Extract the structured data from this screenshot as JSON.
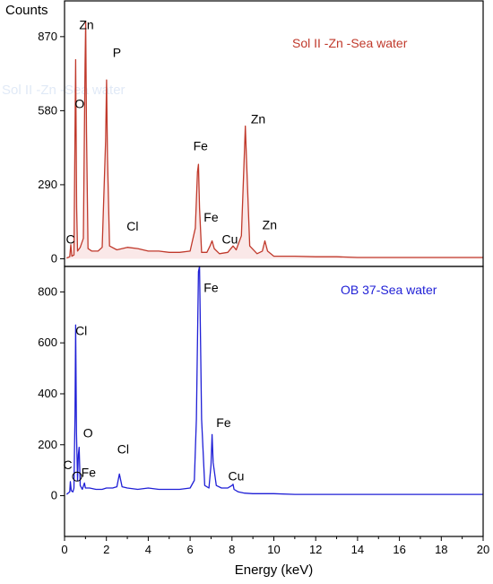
{
  "chart_data": [
    {
      "type": "line",
      "panel": "top",
      "title": "",
      "series": [
        {
          "name": "Sol II -Zn -Sea water",
          "color": "#c0392b",
          "x": [
            0.1,
            0.25,
            0.3,
            0.35,
            0.45,
            0.5,
            0.53,
            0.58,
            0.62,
            0.75,
            0.9,
            0.98,
            1.01,
            1.05,
            1.12,
            1.3,
            1.6,
            1.8,
            1.96,
            2.01,
            2.05,
            2.15,
            2.5,
            3.0,
            3.5,
            4.0,
            4.5,
            5.0,
            5.5,
            6.0,
            6.25,
            6.35,
            6.4,
            6.45,
            6.55,
            6.8,
            6.95,
            7.05,
            7.15,
            7.4,
            7.8,
            8.05,
            8.2,
            8.45,
            8.6,
            8.64,
            8.7,
            8.85,
            9.2,
            9.45,
            9.57,
            9.7,
            10.0,
            11.0,
            12.0,
            13.0,
            14.0,
            15.0,
            16.0,
            17.0,
            18.0,
            19.0,
            20.0
          ],
          "values": [
            3,
            8,
            55,
            10,
            15,
            500,
            780,
            200,
            30,
            45,
            80,
            760,
            930,
            500,
            40,
            30,
            30,
            45,
            460,
            700,
            400,
            50,
            35,
            45,
            40,
            30,
            30,
            25,
            25,
            30,
            120,
            340,
            370,
            200,
            25,
            25,
            50,
            70,
            40,
            20,
            25,
            50,
            35,
            90,
            430,
            520,
            380,
            50,
            20,
            30,
            70,
            30,
            10,
            10,
            8,
            8,
            5,
            5,
            5,
            5,
            5,
            5,
            5
          ]
        }
      ],
      "xlim": [
        0,
        20
      ],
      "ylim": [
        -30,
        1010
      ],
      "yticks": [
        0,
        290,
        580,
        870
      ],
      "ylabel": "Counts",
      "xlabel": "",
      "grid": false,
      "legend_position": "top-right",
      "annotations": [
        {
          "text": "C",
          "x": 0.28,
          "y": 60
        },
        {
          "text": "O",
          "x": 0.72,
          "y": 590
        },
        {
          "text": "Zn",
          "x": 1.05,
          "y": 900
        },
        {
          "text": "P",
          "x": 2.5,
          "y": 790
        },
        {
          "text": "Cl",
          "x": 3.25,
          "y": 110
        },
        {
          "text": "Fe",
          "x": 6.5,
          "y": 425
        },
        {
          "text": "Fe",
          "x": 7.0,
          "y": 145
        },
        {
          "text": "Cu",
          "x": 7.9,
          "y": 60
        },
        {
          "text": "Zn",
          "x": 9.25,
          "y": 530
        },
        {
          "text": "Zn",
          "x": 9.8,
          "y": 115
        }
      ],
      "watermark_text": "Sol II -Zn -Sea water"
    },
    {
      "type": "line",
      "panel": "bottom",
      "title": "",
      "series": [
        {
          "name": "OB 37-Sea water",
          "color": "#1f1fd6",
          "x": [
            0.1,
            0.25,
            0.28,
            0.32,
            0.4,
            0.45,
            0.5,
            0.53,
            0.57,
            0.62,
            0.66,
            0.7,
            0.75,
            0.85,
            0.95,
            1.0,
            1.2,
            1.5,
            1.8,
            2.0,
            2.3,
            2.5,
            2.62,
            2.75,
            3.0,
            3.5,
            4.0,
            4.5,
            5.0,
            5.5,
            6.0,
            6.2,
            6.3,
            6.4,
            6.45,
            6.55,
            6.7,
            6.9,
            7.0,
            7.05,
            7.1,
            7.25,
            7.5,
            7.8,
            8.0,
            8.05,
            8.1,
            8.3,
            8.6,
            9.0,
            10.0,
            11.0,
            12.0,
            13.0,
            14.0,
            15.0,
            16.0,
            17.0,
            18.0,
            19.0,
            20.0
          ],
          "values": [
            5,
            15,
            55,
            20,
            15,
            30,
            320,
            670,
            250,
            60,
            160,
            190,
            40,
            25,
            50,
            30,
            30,
            25,
            25,
            30,
            30,
            35,
            85,
            35,
            30,
            25,
            30,
            25,
            25,
            25,
            30,
            60,
            300,
            880,
            900,
            300,
            40,
            30,
            120,
            240,
            130,
            40,
            30,
            30,
            40,
            45,
            25,
            15,
            10,
            8,
            8,
            5,
            5,
            5,
            5,
            5,
            5,
            5,
            5,
            5,
            5
          ]
        }
      ],
      "xlim": [
        0,
        20
      ],
      "ylim": [
        -160,
        900
      ],
      "xticks": [
        0,
        2,
        4,
        6,
        8,
        10,
        12,
        14,
        16,
        18,
        20
      ],
      "yticks": [
        0,
        200,
        400,
        600,
        800
      ],
      "xlabel": "Energy (keV)",
      "ylabel": "",
      "grid": false,
      "legend_position": "top-right",
      "annotations": [
        {
          "text": "Cl",
          "x": 0.8,
          "y": 630
        },
        {
          "text": "Fe",
          "x": 7.0,
          "y": 800
        },
        {
          "text": "O",
          "x": 1.12,
          "y": 230
        },
        {
          "text": "C",
          "x": 0.15,
          "y": 105
        },
        {
          "text": "Fe",
          "x": 1.15,
          "y": 75
        },
        {
          "text": "Cl",
          "x": 2.8,
          "y": 165
        },
        {
          "text": "Fe",
          "x": 7.6,
          "y": 270
        },
        {
          "text": "Cu",
          "x": 8.2,
          "y": 60
        }
      ],
      "circle_marker": {
        "x": 0.6,
        "y": 75
      }
    }
  ]
}
